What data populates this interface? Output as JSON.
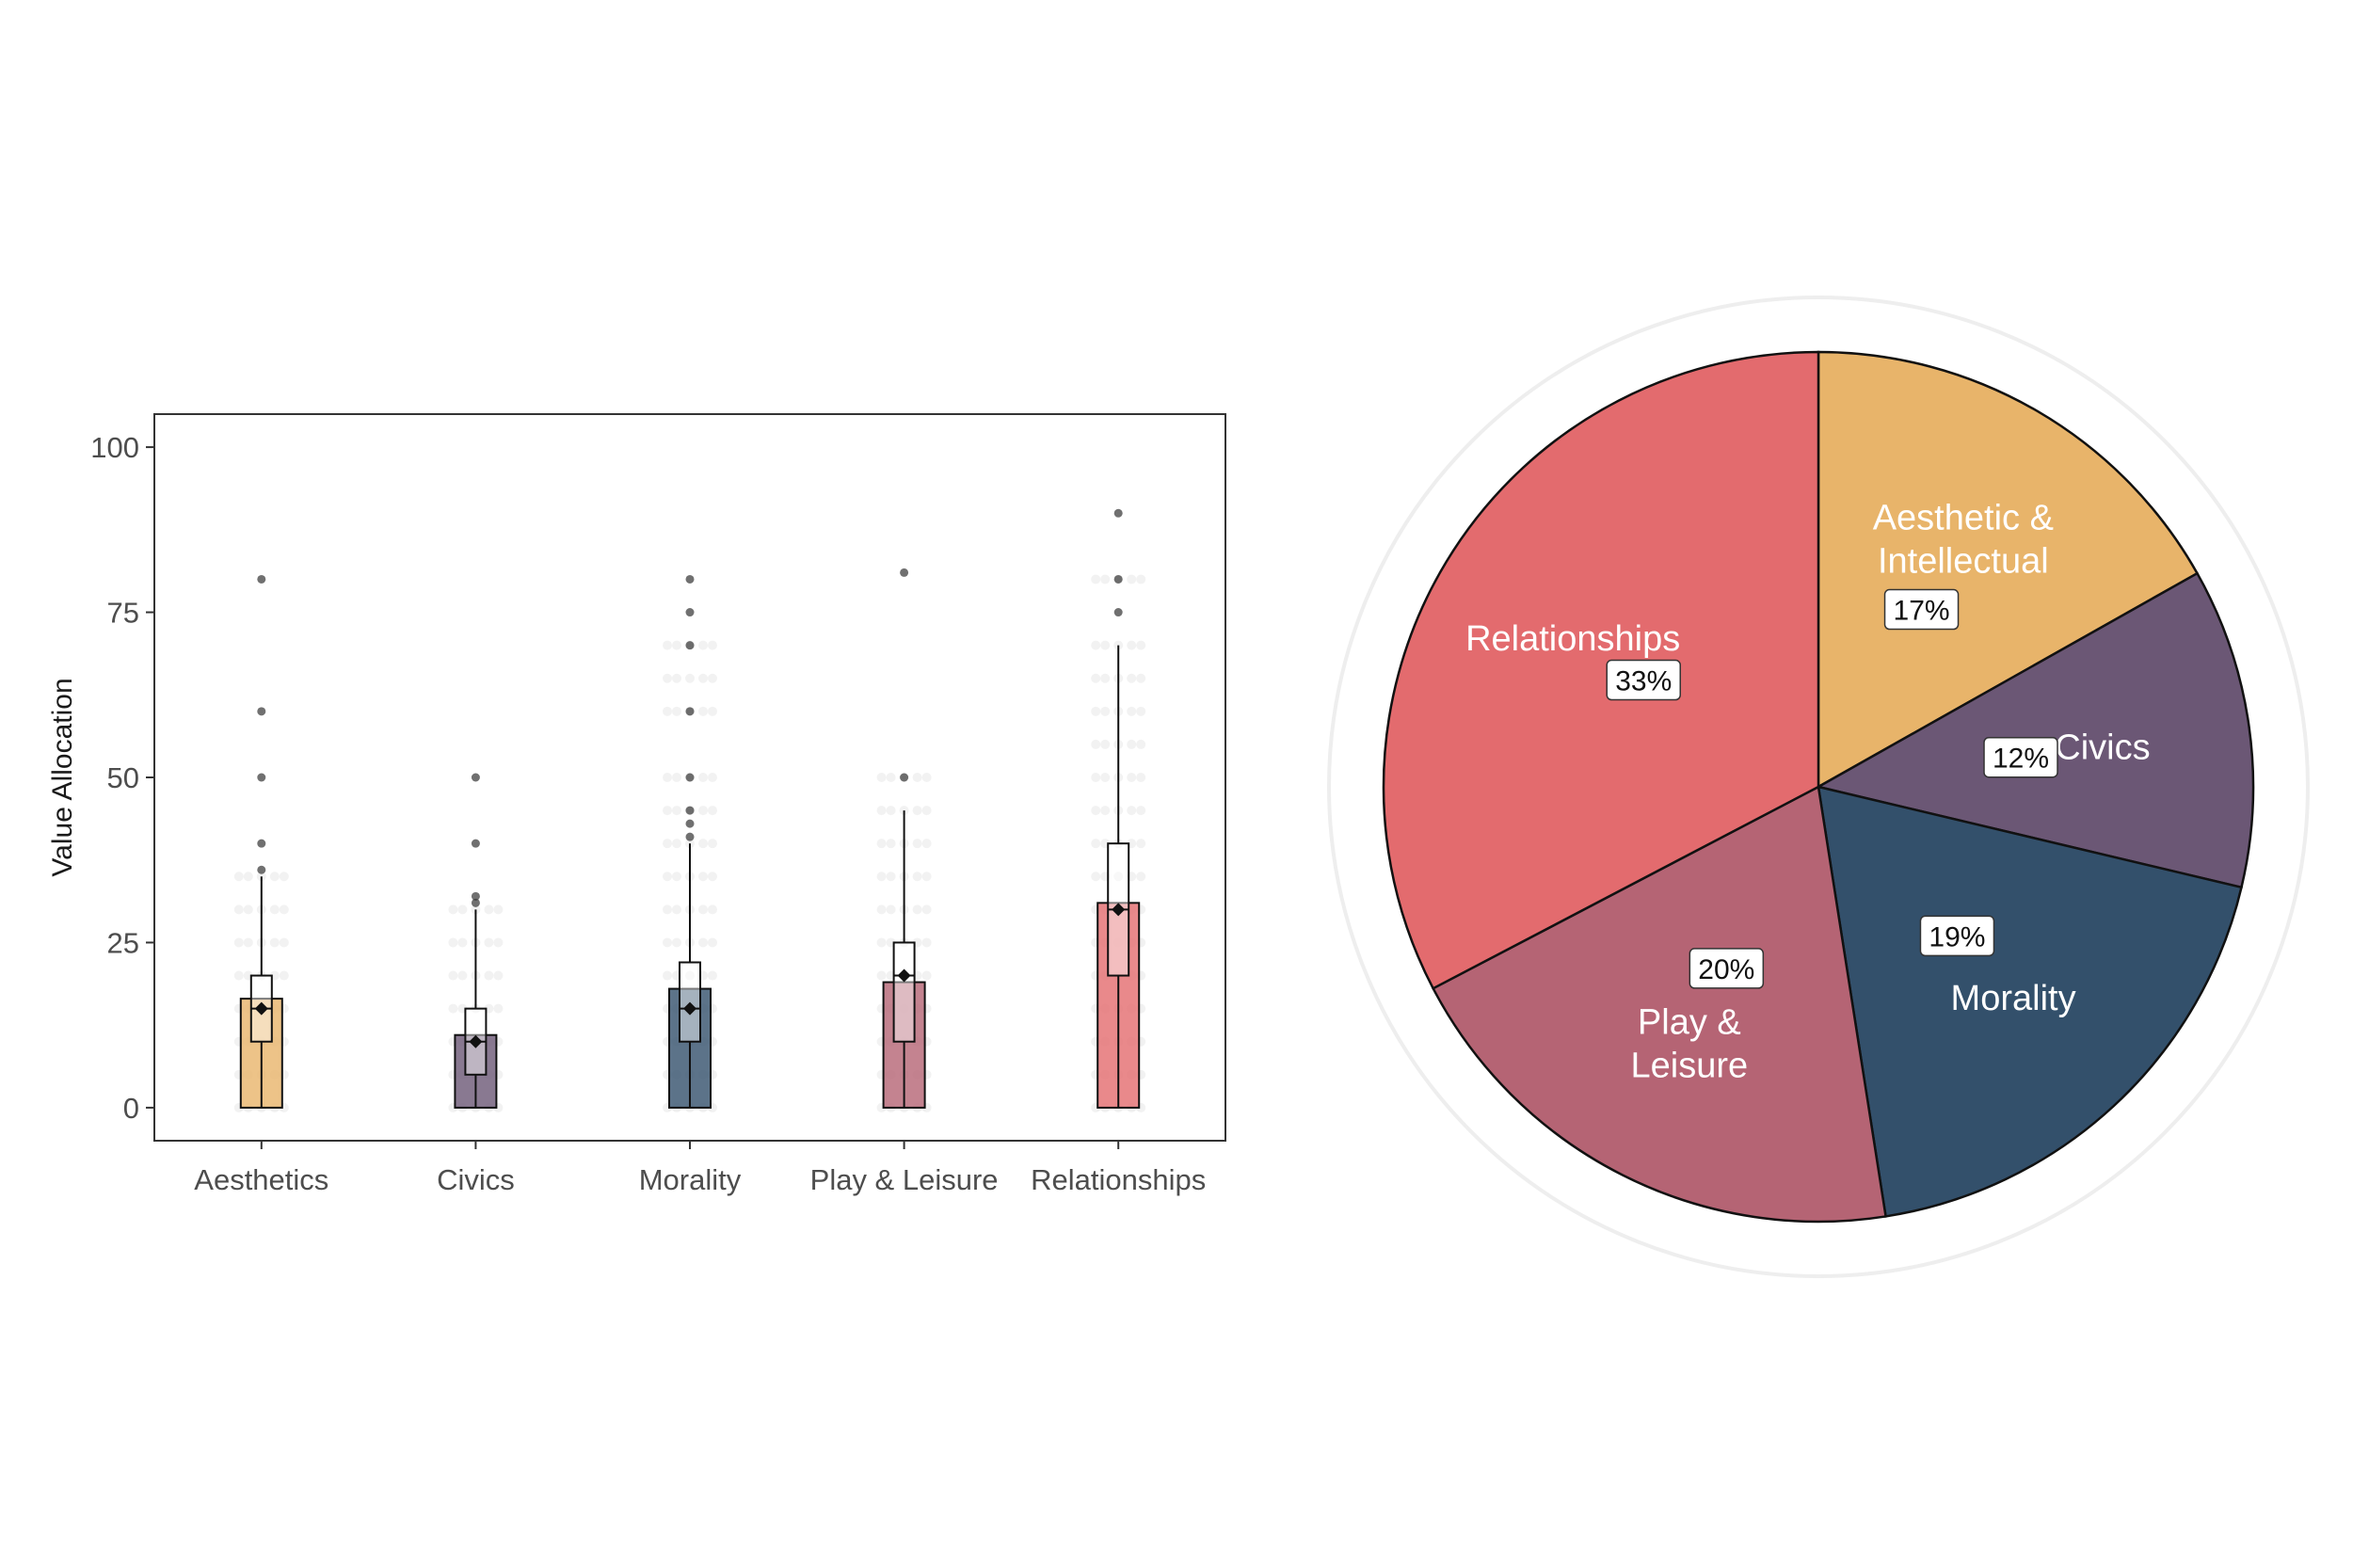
{
  "chart_data": [
    {
      "type": "bar",
      "ylabel": "Value Allocation",
      "xlabel": "",
      "ylim": [
        -5,
        105
      ],
      "yticks": [
        0,
        25,
        50,
        75,
        100
      ],
      "grid": false,
      "categories": [
        "Aesthetics",
        "Civics",
        "Morality",
        "Play & Leisure",
        "Relationships"
      ],
      "colors": [
        "#e8b46a",
        "#6b5775",
        "#33506b",
        "#b56474",
        "#e36b6e"
      ],
      "series": [
        {
          "values": [
            16.5,
            11,
            18,
            19,
            31
          ]
        }
      ],
      "boxes": [
        {
          "q1": 10,
          "median": 15,
          "q3": 20,
          "whisker_low": 0,
          "whisker_high": 35,
          "mean": 15
        },
        {
          "q1": 5,
          "median": 10,
          "q3": 15,
          "whisker_low": 0,
          "whisker_high": 30,
          "mean": 10
        },
        {
          "q1": 10,
          "median": 15,
          "q3": 22,
          "whisker_low": 0,
          "whisker_high": 40,
          "mean": 15
        },
        {
          "q1": 10,
          "median": 20,
          "q3": 25,
          "whisker_low": 0,
          "whisker_high": 45,
          "mean": 20
        },
        {
          "q1": 20,
          "median": 30,
          "q3": 40,
          "whisker_low": 0,
          "whisker_high": 70,
          "mean": 30
        }
      ],
      "outliers": [
        [
          36,
          40,
          50,
          60,
          80
        ],
        [
          31,
          32,
          40,
          50
        ],
        [
          41,
          43,
          45,
          50,
          60,
          70,
          75,
          80
        ],
        [
          50,
          81
        ],
        [
          75,
          80,
          90
        ]
      ],
      "points": [
        [
          0,
          5,
          10,
          15,
          20,
          25,
          30,
          35
        ],
        [
          0,
          5,
          10,
          15,
          20,
          25,
          30
        ],
        [
          0,
          5,
          10,
          15,
          20,
          25,
          30,
          35,
          40,
          45,
          50,
          60,
          65,
          70
        ],
        [
          0,
          5,
          10,
          15,
          20,
          25,
          30,
          35,
          40,
          45,
          50
        ],
        [
          0,
          5,
          10,
          15,
          20,
          25,
          30,
          35,
          40,
          45,
          50,
          55,
          60,
          65,
          70,
          80
        ]
      ]
    },
    {
      "type": "pie",
      "start": "top, clockwise",
      "slices": [
        {
          "label": "Aesthetic & Intellectual",
          "lines": [
            "Aesthetic &",
            "Intellectual"
          ],
          "value": 17,
          "pct_label": "17%",
          "color": "#e8b46a"
        },
        {
          "label": "Civics",
          "lines": [
            "Civics"
          ],
          "value": 12,
          "pct_label": "12%",
          "color": "#6b5775"
        },
        {
          "label": "Morality",
          "lines": [
            "Morality"
          ],
          "value": 19,
          "pct_label": "19%",
          "color": "#33506b"
        },
        {
          "label": "Play & Leisure",
          "lines": [
            "Play &",
            "Leisure"
          ],
          "value": 20,
          "pct_label": "20%",
          "color": "#b56474"
        },
        {
          "label": "Relationships",
          "lines": [
            "Relationships"
          ],
          "value": 33,
          "pct_label": "33%",
          "color": "#e36b6e"
        }
      ]
    }
  ]
}
